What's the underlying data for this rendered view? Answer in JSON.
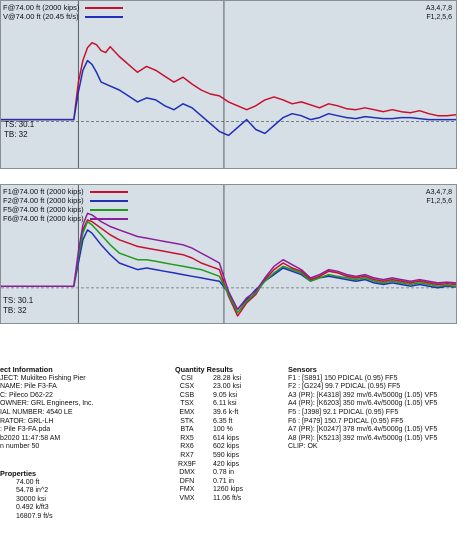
{
  "colors": {
    "F": "#c8102e",
    "V": "#1f2fb8",
    "F5": "#1f9a1f",
    "F6": "#8a1f9a",
    "bg": "#d6dee6"
  },
  "top_panel": {
    "legend": [
      "F@74.00 ft (2000 kips)",
      "V@74.00 ft (20.45 ft/s)"
    ],
    "channels": [
      "A3,4,7,8",
      "F1,2,5,6"
    ],
    "ts": "TS: 30.1",
    "tb": "TB: 32"
  },
  "bottom_panel": {
    "legend": [
      "F1@74.00 ft (2000 kips)",
      "F2@74.00 ft (2000 kips)",
      "F5@74.00 ft (2000 kips)",
      "F6@74.00 ft (2000 kips)"
    ],
    "channels": [
      "A3,4,7,8",
      "F1,2,5,6"
    ],
    "ts": "TS: 30.1",
    "tb": "TB: 32"
  },
  "project": {
    "heading": "ect Information",
    "lines": [
      "JECT: Mukilteo Fishing Pier",
      "NAME: Pile F3-FA",
      "C: Pileco D62-22",
      "OWNER: GRL Engineers, Inc.",
      "IAL NUMBER: 4540 LE",
      "RATOR: GRL-LH",
      ": Pile F3-FA.pda",
      "b2020 11:47:58 AM",
      "n number 50"
    ]
  },
  "properties": {
    "heading": "Properties",
    "lines": [
      "74.00 ft",
      "54.78 in^2",
      "30000 ksi",
      "0.492 k/ft3",
      "16807.9 ft/s"
    ]
  },
  "quantity": {
    "heading": "Quantity Results",
    "rows": [
      [
        "CSI",
        "28.28 ksi"
      ],
      [
        "CSX",
        "23.00 ksi"
      ],
      [
        "CSB",
        "9.05 ksi"
      ],
      [
        "TSX",
        "6.11 ksi"
      ],
      [
        "EMX",
        "39.6 k-ft"
      ],
      [
        "STK",
        "6.35 ft"
      ],
      [
        "BTA",
        "100 %"
      ],
      [
        "RX5",
        "614 kips"
      ],
      [
        "RX6",
        "602 kips"
      ],
      [
        "RX7",
        "590 kips"
      ],
      [
        "RX9F",
        "420 kips"
      ],
      [
        "DMX",
        "0.78 in"
      ],
      [
        "DFN",
        "0.71 in"
      ],
      [
        "FMX",
        "1260 kips"
      ],
      [
        "VMX",
        "11.06 ft/s"
      ]
    ]
  },
  "sensors": {
    "heading": "Sensors",
    "lines": [
      "F1 : [S891] 150 PDICAL (0.95) FF5",
      "F2 : [G224] 99.7 PDICAL (0.95) FF5",
      "A3 (PR): [K4318] 392 mv/6.4v/5000g (1.05) VF5",
      "A4 (PR): [K6203] 350 mv/6.4v/5000g (1.05) VF5",
      "F5 : [J398] 92.1 PDICAL (0.95) FF5",
      "F6 : [P479] 150.7 PDICAL (0.95) FF5",
      "A7 (PR): [K0247] 378 mv/6.4v/5000g (1.05) VF5",
      "A8 (PR): [K5213] 392 mv/6.4v/5000g (1.05) VF5",
      "CLIP: OK"
    ]
  },
  "chart_data": [
    {
      "type": "line",
      "x_range": [
        0,
        100
      ],
      "y_range": [
        -40,
        100
      ],
      "markers_x": [
        17,
        49
      ],
      "baseline": 0,
      "series": [
        {
          "name": "F@74.00 ft (2000 kips)",
          "color": "#c8102e",
          "x": [
            0,
            16,
            17,
            18,
            19,
            20,
            21,
            22,
            23,
            24,
            26,
            28,
            30,
            32,
            34,
            36,
            38,
            40,
            42,
            44,
            46,
            48,
            50,
            52,
            54,
            56,
            58,
            60,
            62,
            64,
            66,
            68,
            70,
            72,
            74,
            76,
            78,
            80,
            82,
            84,
            86,
            88,
            90,
            92,
            94,
            96,
            98,
            100
          ],
          "y": [
            2,
            2,
            40,
            62,
            75,
            80,
            78,
            72,
            70,
            76,
            66,
            58,
            50,
            56,
            52,
            46,
            40,
            45,
            38,
            32,
            28,
            26,
            20,
            16,
            12,
            16,
            22,
            25,
            22,
            18,
            20,
            17,
            14,
            18,
            16,
            13,
            12,
            14,
            12,
            10,
            12,
            10,
            9,
            11,
            8,
            6,
            6,
            7
          ]
        },
        {
          "name": "V@74.00 ft (20.45 ft/s)",
          "color": "#1f2fb8",
          "x": [
            0,
            16,
            17,
            18,
            19,
            20,
            21,
            22,
            23,
            24,
            26,
            28,
            30,
            32,
            34,
            36,
            38,
            40,
            42,
            44,
            46,
            48,
            50,
            52,
            54,
            56,
            58,
            60,
            62,
            64,
            66,
            68,
            70,
            72,
            74,
            76,
            78,
            80,
            82,
            84,
            86,
            88,
            90,
            92,
            94,
            96,
            98,
            100
          ],
          "y": [
            2,
            2,
            30,
            52,
            62,
            58,
            50,
            40,
            38,
            36,
            32,
            26,
            20,
            24,
            22,
            16,
            12,
            18,
            14,
            6,
            -2,
            -10,
            -14,
            -6,
            2,
            -8,
            -12,
            -4,
            4,
            8,
            6,
            2,
            4,
            8,
            6,
            4,
            3,
            5,
            4,
            3,
            3,
            4,
            4,
            3,
            2,
            2,
            2,
            2
          ]
        }
      ]
    },
    {
      "type": "line",
      "x_range": [
        0,
        100
      ],
      "y_range": [
        -40,
        100
      ],
      "markers_x": [
        17,
        49
      ],
      "baseline": 0,
      "series": [
        {
          "name": "F1@74.00 ft (2000 kips)",
          "color": "#c8102e",
          "x": [
            0,
            16,
            17,
            18,
            19,
            20,
            22,
            24,
            26,
            28,
            30,
            32,
            34,
            36,
            38,
            40,
            42,
            44,
            46,
            48,
            50,
            52,
            54,
            56,
            58,
            60,
            62,
            64,
            66,
            68,
            70,
            72,
            74,
            76,
            78,
            80,
            82,
            84,
            86,
            88,
            90,
            92,
            94,
            96,
            98,
            100
          ],
          "y": [
            2,
            2,
            40,
            70,
            82,
            80,
            72,
            64,
            58,
            54,
            50,
            48,
            46,
            44,
            42,
            40,
            36,
            30,
            26,
            22,
            -10,
            -34,
            -18,
            -8,
            10,
            22,
            30,
            24,
            20,
            10,
            14,
            20,
            18,
            14,
            12,
            14,
            10,
            8,
            10,
            8,
            6,
            8,
            6,
            4,
            5,
            4
          ]
        },
        {
          "name": "F2@74.00 ft (2000 kips)",
          "color": "#1f2fb8",
          "x": [
            0,
            16,
            17,
            18,
            19,
            20,
            22,
            24,
            26,
            28,
            30,
            32,
            34,
            36,
            38,
            40,
            42,
            44,
            46,
            48,
            50,
            52,
            54,
            56,
            58,
            60,
            62,
            64,
            66,
            68,
            70,
            72,
            74,
            76,
            78,
            80,
            82,
            84,
            86,
            88,
            90,
            92,
            94,
            96,
            98,
            100
          ],
          "y": [
            2,
            2,
            30,
            58,
            70,
            66,
            52,
            40,
            30,
            26,
            22,
            24,
            22,
            20,
            18,
            16,
            14,
            12,
            10,
            8,
            -6,
            -26,
            -14,
            -2,
            8,
            16,
            24,
            20,
            16,
            8,
            12,
            14,
            12,
            10,
            8,
            10,
            6,
            4,
            6,
            4,
            2,
            4,
            2,
            0,
            2,
            1
          ]
        },
        {
          "name": "F5@74.00 ft (2000 kips)",
          "color": "#1f9a1f",
          "x": [
            0,
            16,
            17,
            18,
            19,
            20,
            22,
            24,
            26,
            28,
            30,
            32,
            34,
            36,
            38,
            40,
            42,
            44,
            46,
            48,
            50,
            52,
            54,
            56,
            58,
            60,
            62,
            64,
            66,
            68,
            70,
            72,
            74,
            76,
            78,
            80,
            82,
            84,
            86,
            88,
            90,
            92,
            94,
            96,
            98,
            100
          ],
          "y": [
            2,
            2,
            38,
            66,
            80,
            76,
            64,
            52,
            42,
            38,
            34,
            34,
            32,
            30,
            28,
            26,
            24,
            22,
            18,
            14,
            -8,
            -30,
            -16,
            -6,
            8,
            18,
            26,
            22,
            18,
            8,
            12,
            16,
            14,
            12,
            10,
            12,
            8,
            6,
            8,
            6,
            4,
            6,
            4,
            2,
            3,
            2
          ]
        },
        {
          "name": "F6@74.00 ft (2000 kips)",
          "color": "#8a1f9a",
          "x": [
            0,
            16,
            17,
            18,
            19,
            20,
            22,
            24,
            26,
            28,
            30,
            32,
            34,
            36,
            38,
            40,
            42,
            44,
            46,
            48,
            50,
            52,
            54,
            56,
            58,
            60,
            62,
            64,
            66,
            68,
            70,
            72,
            74,
            76,
            78,
            80,
            82,
            84,
            86,
            88,
            90,
            92,
            94,
            96,
            98,
            100
          ],
          "y": [
            2,
            2,
            44,
            76,
            90,
            88,
            80,
            74,
            70,
            66,
            62,
            60,
            58,
            56,
            54,
            52,
            48,
            42,
            36,
            30,
            -4,
            -26,
            -12,
            -4,
            12,
            26,
            34,
            28,
            22,
            12,
            16,
            22,
            20,
            16,
            14,
            16,
            12,
            10,
            12,
            10,
            8,
            10,
            8,
            6,
            7,
            6
          ]
        }
      ]
    }
  ]
}
